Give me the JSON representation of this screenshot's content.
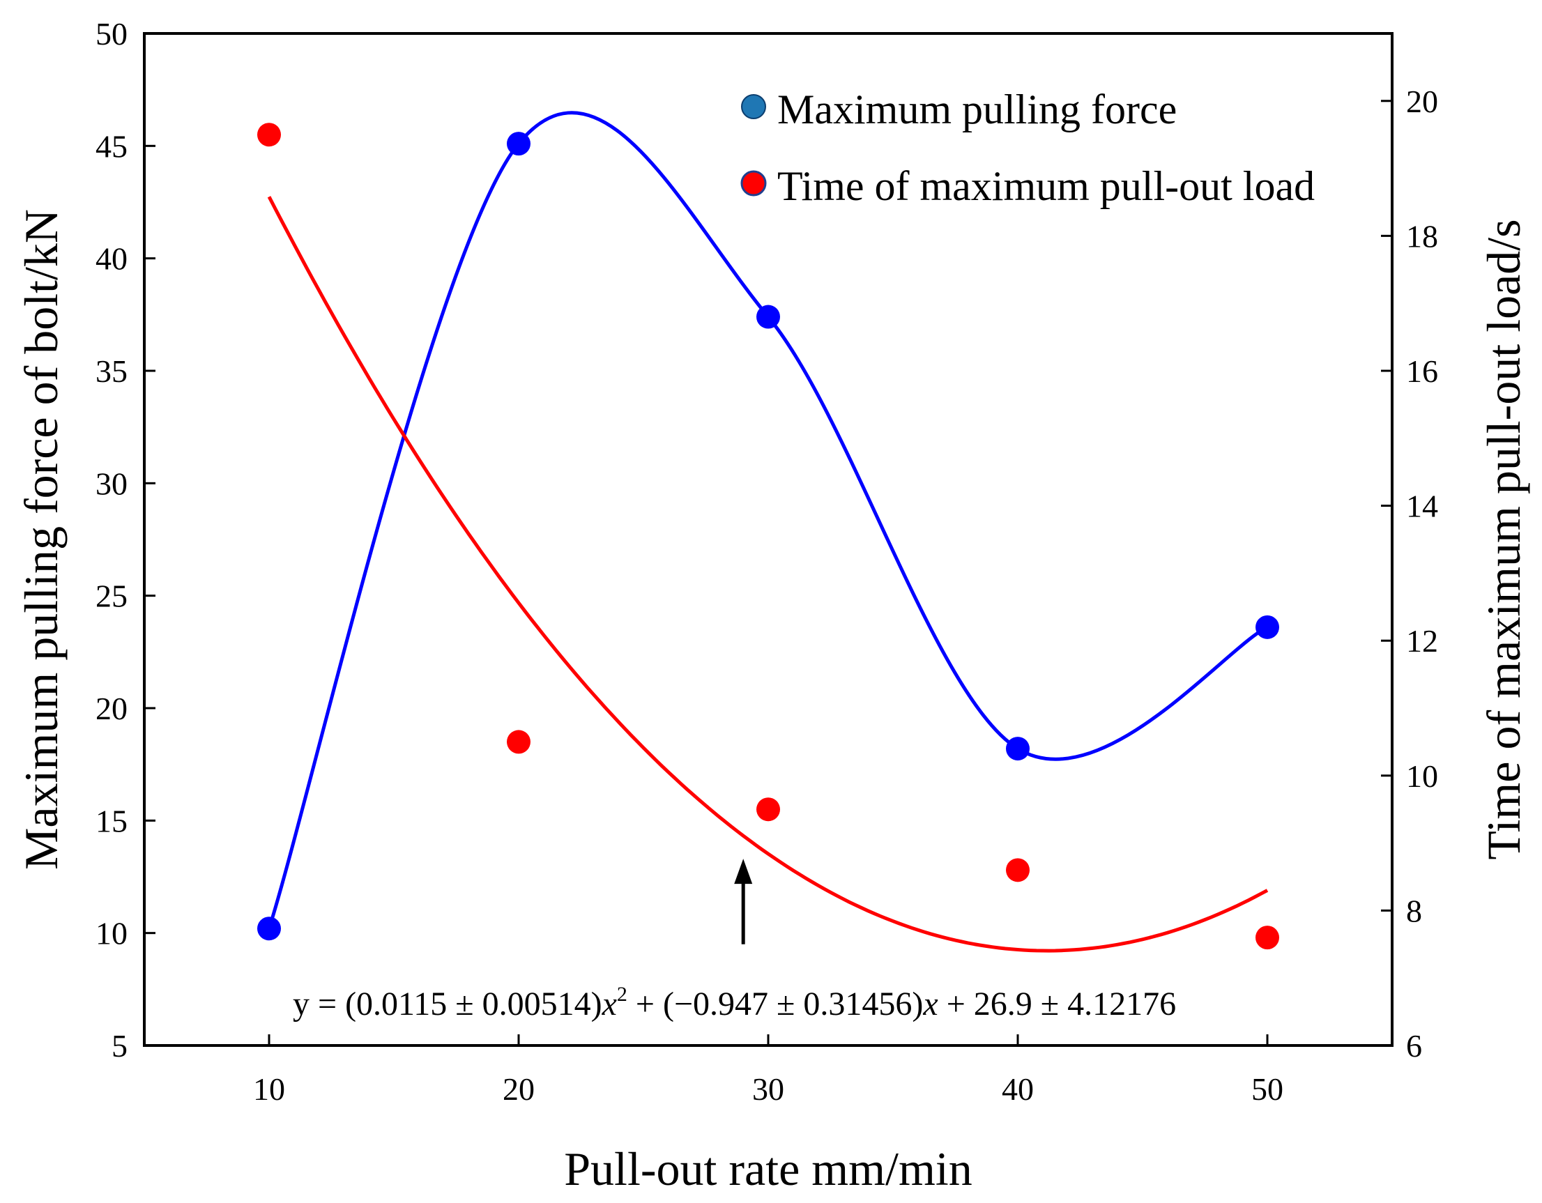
{
  "chart_data": {
    "type": "scatter",
    "title": "",
    "xlabel": "Pull-out rate mm/min",
    "ylabel_left": "Maximum pulling force of bolt/kN",
    "ylabel_right": "Time of maximum pull-out load/s",
    "xlim": [
      5,
      55
    ],
    "ylim_left": [
      5,
      50
    ],
    "ylim_right": [
      6,
      21
    ],
    "x_ticks": [
      10,
      20,
      30,
      40,
      50
    ],
    "y_left_ticks": [
      5,
      10,
      15,
      20,
      25,
      30,
      35,
      40,
      45,
      50
    ],
    "y_right_ticks": [
      6,
      8,
      10,
      12,
      14,
      16,
      18,
      20
    ],
    "series": [
      {
        "name": "Maximum pulling force",
        "axis": "left",
        "color": "#0000ff",
        "legend_marker_color": "#1f77b4",
        "x": [
          10,
          20,
          30,
          40,
          50
        ],
        "values": [
          10.2,
          45.1,
          37.4,
          18.2,
          23.6
        ],
        "fit": "smooth spline"
      },
      {
        "name": "Time of maximum pull-out load",
        "axis": "right",
        "color": "#ff0000",
        "legend_marker_color": "#ff0000",
        "x": [
          10,
          20,
          30,
          40,
          50
        ],
        "values": [
          19.5,
          10.5,
          9.5,
          8.6,
          7.6
        ],
        "fit": "quadratic",
        "fit_coefficients": {
          "a": 0.0115,
          "b": -0.947,
          "c": 26.9
        }
      }
    ],
    "legend": {
      "position": "top-right",
      "entries": [
        "Maximum pulling force",
        "Time of maximum pull-out load"
      ]
    },
    "annotation": {
      "text": "y = (0.0115 ± 0.00514)x² + (−0.947 ± 0.31456)x + 26.9 ± 4.12176",
      "text_prefix": "y = (0.0115 ± 0.00514)",
      "text_mid": " + (−0.947 ± 0.31456)",
      "text_suffix": " + 26.9 ± 4.12176",
      "var": "x",
      "sup": "2",
      "arrow_x": 29,
      "arrow_from_y_left": 9.5,
      "arrow_to_y_left": 13.3
    }
  }
}
